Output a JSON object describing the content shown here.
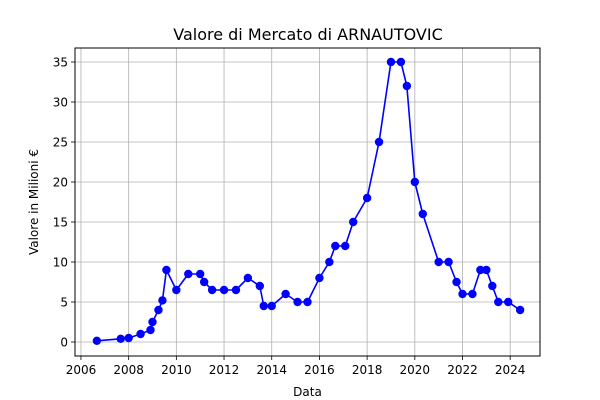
{
  "chart_data": {
    "type": "line",
    "title": "Valore di Mercato di ARNAUTOVIC",
    "xlabel": "Data",
    "ylabel": "Valore in Milioni €",
    "xlim": [
      "2005-10-01",
      "2025-04-01"
    ],
    "ylim": [
      -1.75,
      36.75
    ],
    "grid": true,
    "colors": {
      "line": "#0000ff",
      "marker": "#0000ff",
      "grid": "#b0b0b0"
    },
    "x_ticks": [
      "2006",
      "2008",
      "2010",
      "2012",
      "2014",
      "2016",
      "2018",
      "2020",
      "2022",
      "2024"
    ],
    "y_ticks": [
      "0",
      "5",
      "10",
      "15",
      "20",
      "25",
      "30",
      "35"
    ],
    "series": [
      {
        "x": [
          "2006-09-01",
          "2007-09-01",
          "2008-01-01",
          "2008-07-01",
          "2008-12-01",
          "2009-01-01",
          "2009-04-01",
          "2009-06-01",
          "2009-08-01",
          "2010-01-01",
          "2010-07-01",
          "2011-01-01",
          "2011-03-01",
          "2011-07-01",
          "2012-01-01",
          "2012-07-01",
          "2013-01-01",
          "2013-07-01",
          "2013-09-01",
          "2014-01-01",
          "2014-08-01",
          "2015-02-01",
          "2015-07-01",
          "2016-01-01",
          "2016-06-01",
          "2016-09-01",
          "2017-02-01",
          "2017-06-01",
          "2018-01-01",
          "2018-07-01",
          "2019-01-01",
          "2019-06-01",
          "2019-09-01",
          "2020-01-01",
          "2020-05-01",
          "2021-01-01",
          "2021-06-01",
          "2021-10-01",
          "2022-01-01",
          "2022-06-01",
          "2022-10-01",
          "2023-01-01",
          "2023-04-01",
          "2023-07-01",
          "2023-12-01",
          "2024-06-01"
        ],
        "values": [
          0.15,
          0.4,
          0.5,
          1,
          1.5,
          2.5,
          4,
          5.2,
          9,
          6.5,
          8.5,
          8.5,
          7.5,
          6.5,
          6.5,
          6.5,
          8,
          7,
          4.5,
          4.5,
          6,
          5,
          5,
          8,
          10,
          12,
          12,
          15,
          18,
          25,
          35,
          35,
          32,
          20,
          16,
          10,
          10,
          7.5,
          6,
          6,
          9,
          9,
          7,
          5,
          5,
          4
        ]
      }
    ]
  }
}
